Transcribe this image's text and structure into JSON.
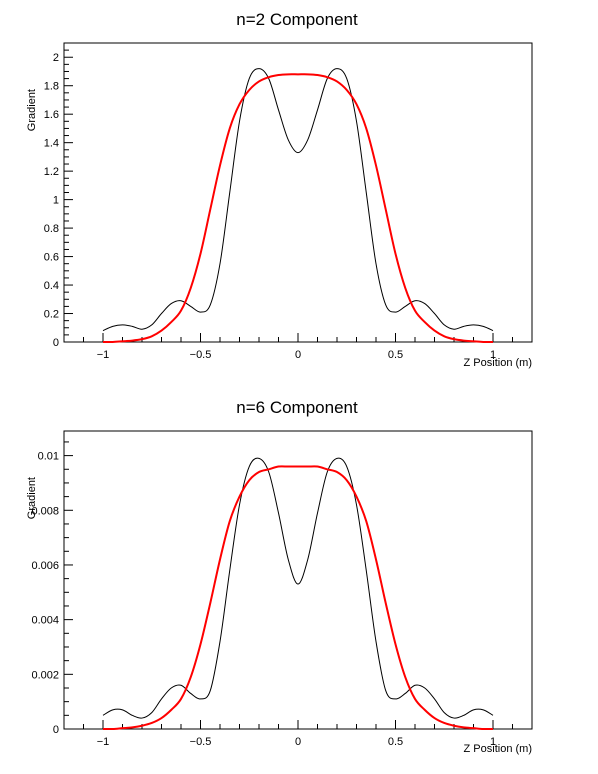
{
  "chart_data": [
    {
      "type": "line",
      "title": "n=2 Component",
      "xlabel": "Z Position (m)",
      "ylabel": "Gradient",
      "xlim": [
        -1.2,
        1.2
      ],
      "ylim": [
        0,
        2.1
      ],
      "xticks": [
        -1,
        -0.5,
        0,
        0.5,
        1
      ],
      "xtick_labels": [
        "−1",
        "−0.5",
        "0",
        "0.5",
        "1"
      ],
      "yticks": [
        0,
        0.2,
        0.4,
        0.6,
        0.8,
        1,
        1.2,
        1.4,
        1.6,
        1.8,
        2
      ],
      "ytick_labels": [
        "0",
        "0.2",
        "0.4",
        "0.6",
        "0.8",
        "1",
        "1.2",
        "1.4",
        "1.6",
        "1.8",
        "2"
      ],
      "grid": false,
      "series": [
        {
          "color": "#000000",
          "width": 1,
          "x": [
            -1.0,
            -0.95,
            -0.9,
            -0.85,
            -0.8,
            -0.75,
            -0.7,
            -0.65,
            -0.6,
            -0.55,
            -0.5,
            -0.45,
            -0.4,
            -0.35,
            -0.3,
            -0.25,
            -0.2,
            -0.15,
            -0.1,
            -0.05,
            0.0,
            0.05,
            0.1,
            0.15,
            0.2,
            0.25,
            0.3,
            0.35,
            0.4,
            0.45,
            0.5,
            0.55,
            0.6,
            0.65,
            0.7,
            0.75,
            0.8,
            0.85,
            0.9,
            0.95,
            1.0
          ],
          "y": [
            0.08,
            0.11,
            0.12,
            0.11,
            0.09,
            0.12,
            0.2,
            0.27,
            0.29,
            0.25,
            0.21,
            0.26,
            0.55,
            1.05,
            1.55,
            1.85,
            1.92,
            1.85,
            1.63,
            1.42,
            1.33,
            1.42,
            1.63,
            1.85,
            1.92,
            1.85,
            1.55,
            1.05,
            0.55,
            0.26,
            0.21,
            0.25,
            0.29,
            0.27,
            0.2,
            0.12,
            0.09,
            0.11,
            0.12,
            0.11,
            0.08
          ]
        },
        {
          "color": "#ff0000",
          "width": 2,
          "x": [
            -1.0,
            -0.95,
            -0.9,
            -0.85,
            -0.8,
            -0.75,
            -0.7,
            -0.65,
            -0.6,
            -0.55,
            -0.5,
            -0.45,
            -0.4,
            -0.35,
            -0.3,
            -0.25,
            -0.2,
            -0.15,
            -0.1,
            -0.05,
            0.0,
            0.05,
            0.1,
            0.15,
            0.2,
            0.25,
            0.3,
            0.35,
            0.4,
            0.45,
            0.5,
            0.55,
            0.6,
            0.65,
            0.7,
            0.75,
            0.8,
            0.85,
            0.9,
            0.95,
            1.0
          ],
          "y": [
            0.0,
            0.0,
            0.005,
            0.01,
            0.02,
            0.04,
            0.08,
            0.14,
            0.22,
            0.38,
            0.62,
            0.93,
            1.24,
            1.5,
            1.67,
            1.77,
            1.83,
            1.86,
            1.875,
            1.88,
            1.88,
            1.88,
            1.875,
            1.86,
            1.83,
            1.77,
            1.67,
            1.5,
            1.24,
            0.93,
            0.62,
            0.38,
            0.22,
            0.14,
            0.08,
            0.04,
            0.02,
            0.01,
            0.005,
            0.0,
            0.0
          ]
        }
      ]
    },
    {
      "type": "line",
      "title": "n=6 Component",
      "xlabel": "Z Position (m)",
      "ylabel": "Gradient",
      "xlim": [
        -1.2,
        1.2
      ],
      "ylim": [
        0,
        0.0109
      ],
      "xticks": [
        -1,
        -0.5,
        0,
        0.5,
        1
      ],
      "xtick_labels": [
        "−1",
        "−0.5",
        "0",
        "0.5",
        "1"
      ],
      "yticks": [
        0,
        0.002,
        0.004,
        0.006,
        0.008,
        0.01
      ],
      "ytick_labels": [
        "0",
        "0.002",
        "0.004",
        "0.006",
        "0.008",
        "0.01"
      ],
      "grid": false,
      "series": [
        {
          "color": "#000000",
          "width": 1,
          "x": [
            -1.0,
            -0.95,
            -0.9,
            -0.85,
            -0.8,
            -0.75,
            -0.7,
            -0.65,
            -0.6,
            -0.55,
            -0.5,
            -0.45,
            -0.4,
            -0.35,
            -0.3,
            -0.25,
            -0.2,
            -0.15,
            -0.1,
            -0.05,
            0.0,
            0.05,
            0.1,
            0.15,
            0.2,
            0.25,
            0.3,
            0.35,
            0.4,
            0.45,
            0.5,
            0.55,
            0.6,
            0.65,
            0.7,
            0.75,
            0.8,
            0.85,
            0.9,
            0.95,
            1.0
          ],
          "y": [
            0.0005,
            0.0007,
            0.0007,
            0.0005,
            0.0004,
            0.0006,
            0.0011,
            0.0015,
            0.0016,
            0.0013,
            0.0011,
            0.0014,
            0.0032,
            0.0058,
            0.0082,
            0.0096,
            0.0099,
            0.0094,
            0.0079,
            0.0062,
            0.0053,
            0.0062,
            0.0079,
            0.0094,
            0.0099,
            0.0096,
            0.0082,
            0.0058,
            0.0032,
            0.0014,
            0.0011,
            0.0013,
            0.0016,
            0.0015,
            0.0011,
            0.0006,
            0.0004,
            0.0005,
            0.0007,
            0.0007,
            0.0005
          ]
        },
        {
          "color": "#ff0000",
          "width": 2,
          "x": [
            -1.0,
            -0.95,
            -0.9,
            -0.85,
            -0.8,
            -0.75,
            -0.7,
            -0.65,
            -0.6,
            -0.55,
            -0.5,
            -0.45,
            -0.4,
            -0.35,
            -0.3,
            -0.25,
            -0.2,
            -0.15,
            -0.1,
            -0.05,
            0.0,
            0.05,
            0.1,
            0.15,
            0.2,
            0.25,
            0.3,
            0.35,
            0.4,
            0.45,
            0.5,
            0.55,
            0.6,
            0.65,
            0.7,
            0.75,
            0.8,
            0.85,
            0.9,
            0.95,
            1.0
          ],
          "y": [
            0.0,
            0.0,
            3e-05,
            6e-05,
            0.00012,
            0.00022,
            0.0004,
            0.0007,
            0.0011,
            0.0019,
            0.0031,
            0.0046,
            0.0062,
            0.0076,
            0.0085,
            0.0091,
            0.0094,
            0.0095,
            0.0096,
            0.0096,
            0.0096,
            0.0096,
            0.0096,
            0.0095,
            0.0094,
            0.0091,
            0.0085,
            0.0076,
            0.0062,
            0.0046,
            0.0031,
            0.0019,
            0.0011,
            0.0007,
            0.0004,
            0.00022,
            0.00012,
            6e-05,
            3e-05,
            0.0,
            0.0
          ]
        }
      ]
    }
  ]
}
